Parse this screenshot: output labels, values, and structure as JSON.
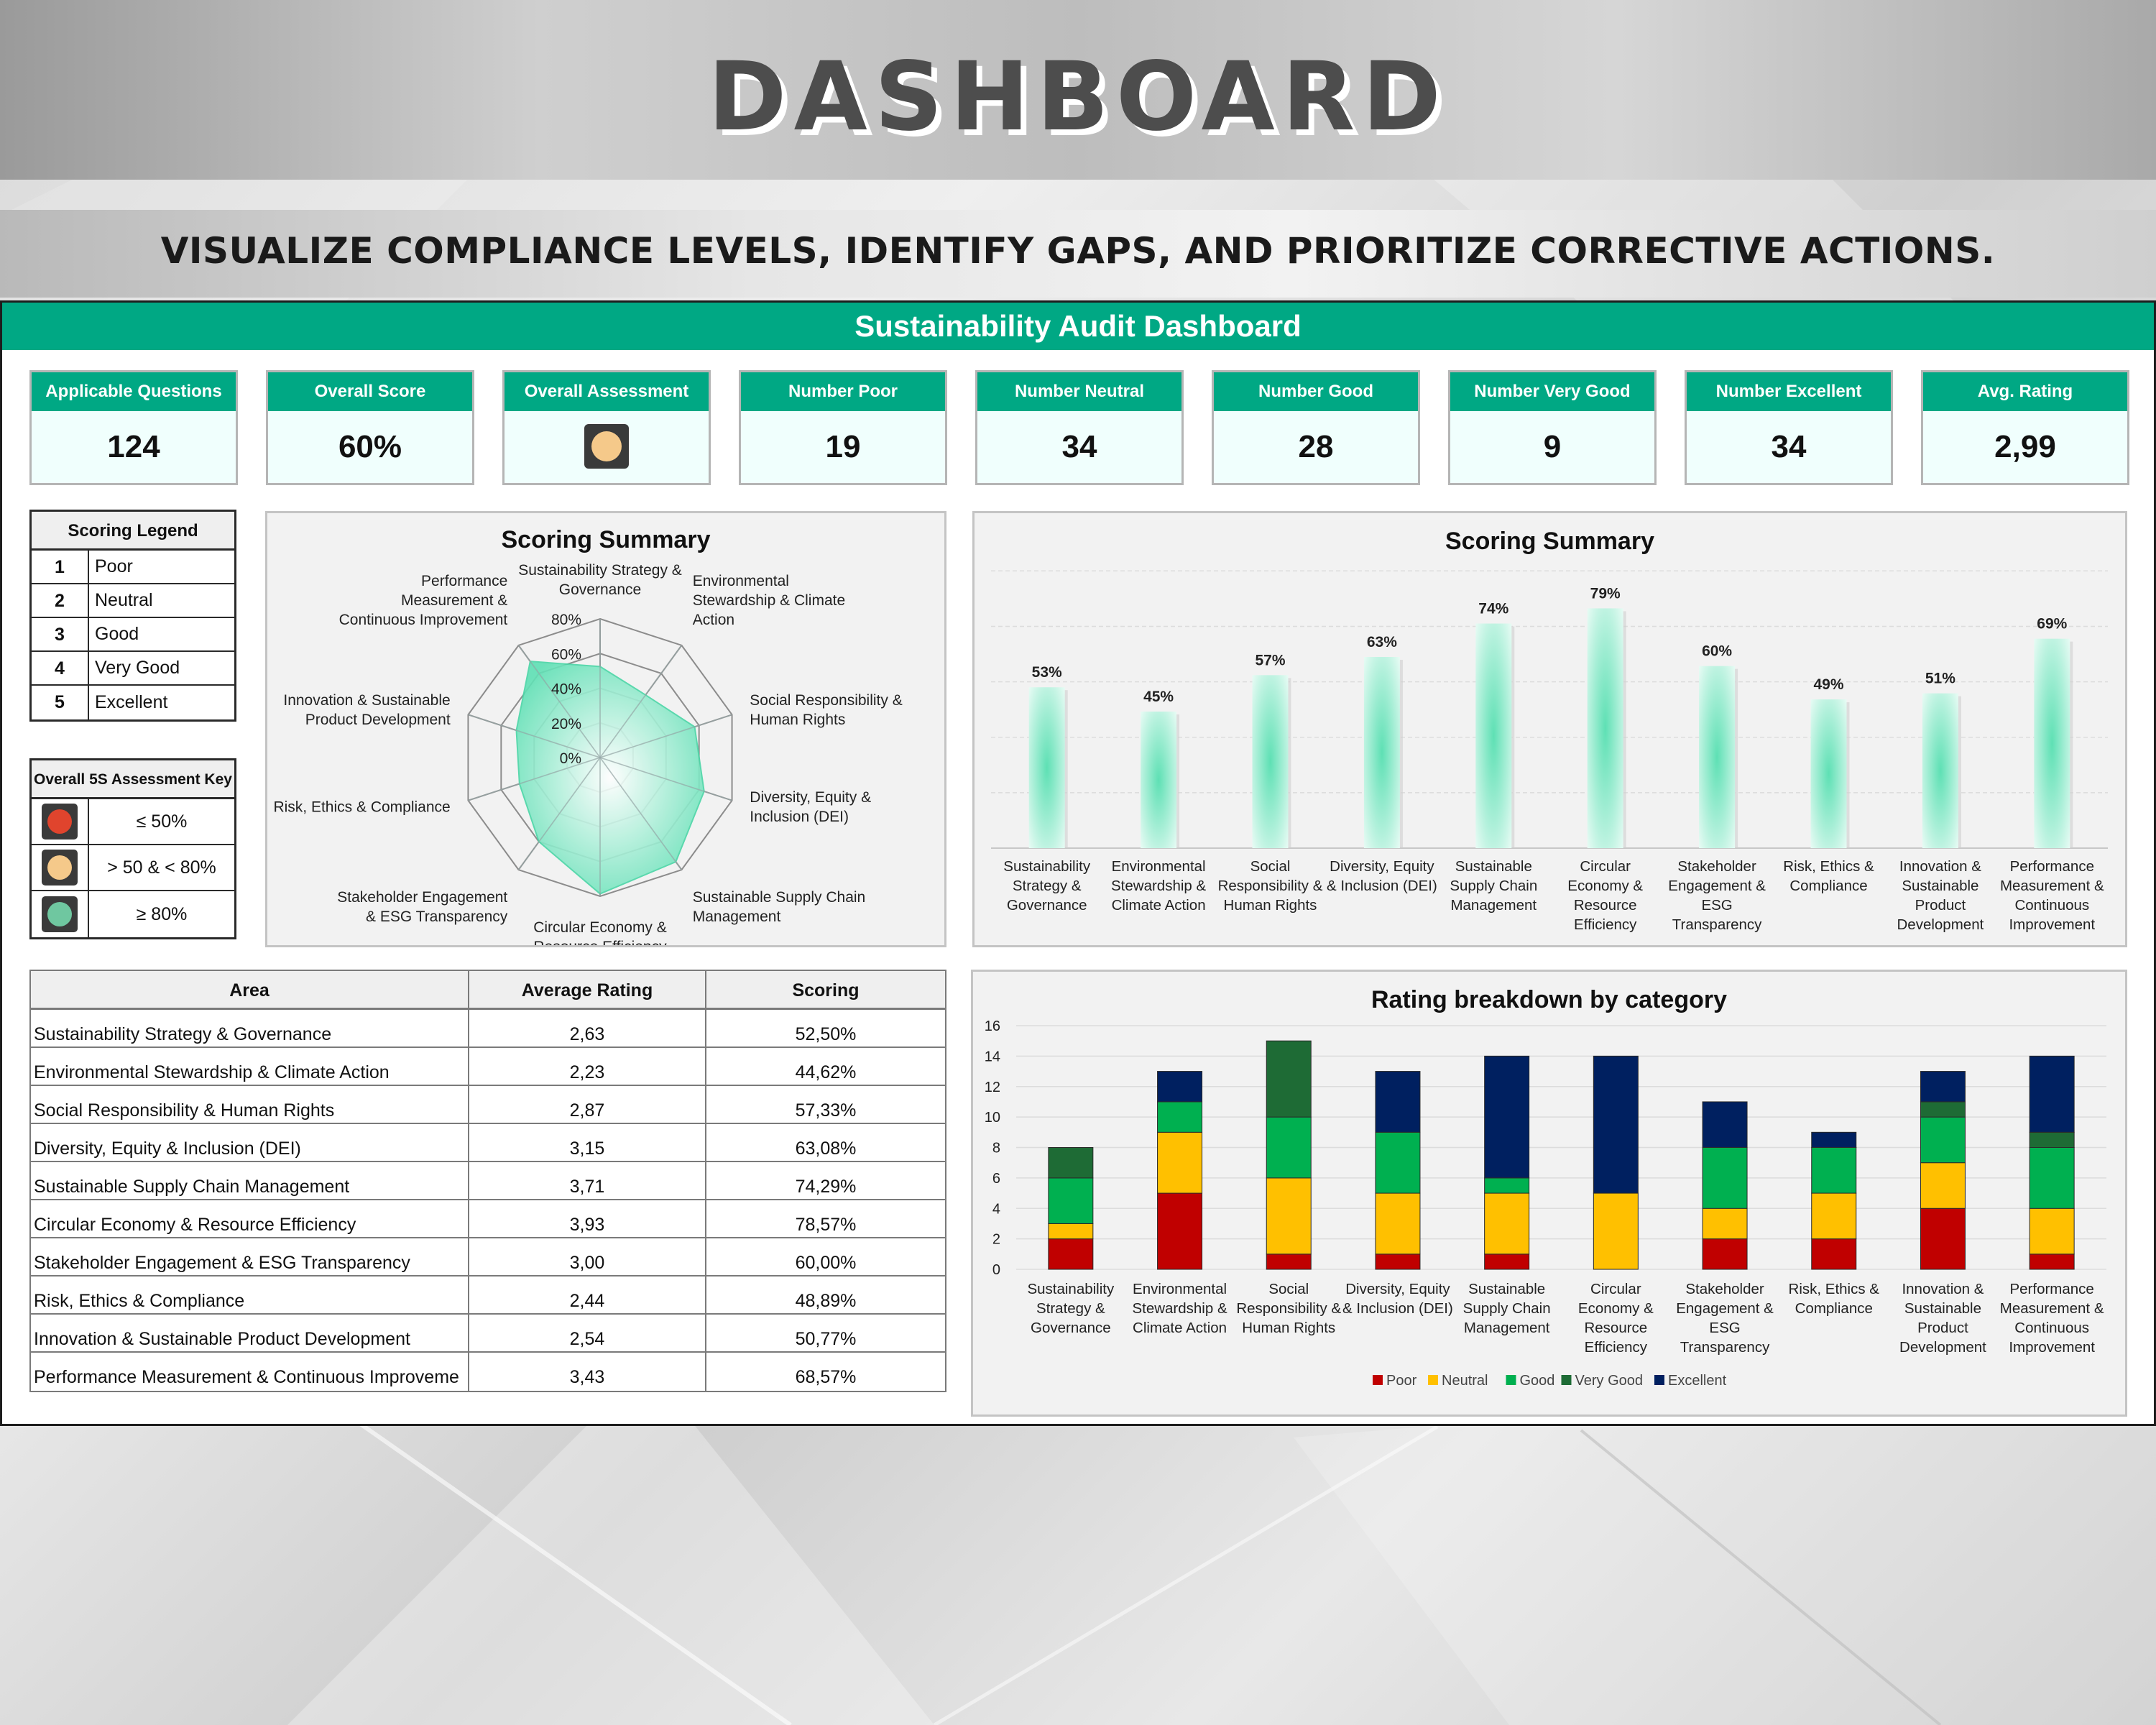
{
  "page": {
    "title": "DASHBOARD",
    "subtitle": "VISUALIZE COMPLIANCE LEVELS, IDENTIFY GAPS, AND PRIORITIZE CORRECTIVE ACTIONS.",
    "dashboard_title": "Sustainability Audit Dashboard"
  },
  "colors": {
    "accent": "#00a884",
    "poor": "#c00000",
    "neutral": "#ffc000",
    "good": "#00b050",
    "very_good": "#1e6b35",
    "excellent": "#002060",
    "status_red": "#e0442d",
    "status_amber": "#f5c98a",
    "status_green": "#6fc7a0"
  },
  "kpis": [
    {
      "label": "Applicable Questions",
      "value": "124"
    },
    {
      "label": "Overall Score",
      "value": "60%"
    },
    {
      "label": "Overall Assessment",
      "value": "",
      "icon": "amber-status-icon"
    },
    {
      "label": "Number Poor",
      "value": "19"
    },
    {
      "label": "Number Neutral",
      "value": "34"
    },
    {
      "label": "Number Good",
      "value": "28"
    },
    {
      "label": "Number Very Good",
      "value": "9"
    },
    {
      "label": "Number Excellent",
      "value": "34"
    },
    {
      "label": "Avg. Rating",
      "value": "2,99"
    }
  ],
  "scoring_legend": {
    "title": "Scoring Legend",
    "items": [
      {
        "num": "1",
        "label": "Poor"
      },
      {
        "num": "2",
        "label": "Neutral"
      },
      {
        "num": "3",
        "label": "Good"
      },
      {
        "num": "4",
        "label": "Very Good"
      },
      {
        "num": "5",
        "label": "Excellent"
      }
    ]
  },
  "assessment_key": {
    "title": "Overall 5S Assessment Key",
    "items": [
      {
        "icon": "red-status-icon",
        "label": "≤ 50%"
      },
      {
        "icon": "amber-status-icon",
        "label": "> 50 & < 80%"
      },
      {
        "icon": "green-status-icon",
        "label": "≥ 80%"
      }
    ]
  },
  "area_table": {
    "headers": [
      "Area",
      "Average Rating",
      "Scoring"
    ],
    "rows": [
      [
        "Sustainability Strategy & Governance",
        "2,63",
        "52,50%"
      ],
      [
        "Environmental Stewardship & Climate Action",
        "2,23",
        "44,62%"
      ],
      [
        "Social Responsibility & Human Rights",
        "2,87",
        "57,33%"
      ],
      [
        "Diversity, Equity & Inclusion (DEI)",
        "3,15",
        "63,08%"
      ],
      [
        "Sustainable Supply Chain Management",
        "3,71",
        "74,29%"
      ],
      [
        "Circular Economy & Resource Efficiency",
        "3,93",
        "78,57%"
      ],
      [
        "Stakeholder Engagement & ESG Transparency",
        "3,00",
        "60,00%"
      ],
      [
        "Risk, Ethics & Compliance",
        "2,44",
        "48,89%"
      ],
      [
        "Innovation & Sustainable Product Development",
        "2,54",
        "50,77%"
      ],
      [
        "Performance Measurement & Continuous Improveme",
        "3,43",
        "68,57%"
      ]
    ]
  },
  "chart_data": [
    {
      "type": "radar",
      "title": "Scoring Summary",
      "categories": [
        [
          "Sustainability Strategy &",
          "Governance"
        ],
        [
          "Environmental",
          "Stewardship & Climate",
          "Action"
        ],
        [
          "Social Responsibility &",
          "Human Rights"
        ],
        [
          "Diversity, Equity &",
          "Inclusion (DEI)"
        ],
        [
          "Sustainable Supply Chain",
          "Management"
        ],
        [
          "Circular Economy &",
          "Resource Efficiency"
        ],
        [
          "Stakeholder Engagement",
          "& ESG Transparency"
        ],
        [
          "Risk, Ethics & Compliance"
        ],
        [
          "Innovation & Sustainable",
          "Product Development"
        ],
        [
          "Performance",
          "Measurement &",
          "Continuous Improvement"
        ]
      ],
      "values": [
        52.5,
        44.62,
        57.33,
        63.08,
        74.29,
        78.57,
        60.0,
        48.89,
        50.77,
        68.57
      ],
      "ticks": [
        "0%",
        "20%",
        "40%",
        "60%",
        "80%"
      ],
      "rmax": 80
    },
    {
      "type": "bar",
      "title": "Scoring Summary",
      "categories": [
        [
          "Sustainability",
          "Strategy &",
          "Governance"
        ],
        [
          "Environmental",
          "Stewardship &",
          "Climate Action"
        ],
        [
          "Social",
          "Responsibility &",
          "Human Rights"
        ],
        [
          "Diversity, Equity",
          "& Inclusion (DEI)"
        ],
        [
          "Sustainable",
          "Supply Chain",
          "Management"
        ],
        [
          "Circular",
          "Economy &",
          "Resource",
          "Efficiency"
        ],
        [
          "Stakeholder",
          "Engagement &",
          "ESG",
          "Transparency"
        ],
        [
          "Risk, Ethics &",
          "Compliance"
        ],
        [
          "Innovation &",
          "Sustainable",
          "Product",
          "Development"
        ],
        [
          "Performance",
          "Measurement &",
          "Continuous",
          "Improvement"
        ]
      ],
      "values": [
        53,
        45,
        57,
        63,
        74,
        79,
        60,
        49,
        51,
        69
      ],
      "labels": [
        "53%",
        "45%",
        "57%",
        "63%",
        "74%",
        "79%",
        "60%",
        "49%",
        "51%",
        "69%"
      ],
      "ylim": [
        0,
        100
      ]
    },
    {
      "type": "bar",
      "stacked": true,
      "title": "Rating breakdown by category",
      "categories": [
        [
          "Sustainability",
          "Strategy &",
          "Governance"
        ],
        [
          "Environmental",
          "Stewardship &",
          "Climate Action"
        ],
        [
          "Social",
          "Responsibility &",
          "Human Rights"
        ],
        [
          "Diversity, Equity",
          "& Inclusion (DEI)"
        ],
        [
          "Sustainable",
          "Supply Chain",
          "Management"
        ],
        [
          "Circular",
          "Economy &",
          "Resource",
          "Efficiency"
        ],
        [
          "Stakeholder",
          "Engagement &",
          "ESG",
          "Transparency"
        ],
        [
          "Risk, Ethics &",
          "Compliance"
        ],
        [
          "Innovation &",
          "Sustainable",
          "Product",
          "Development"
        ],
        [
          "Performance",
          "Measurement &",
          "Continuous",
          "Improvement"
        ]
      ],
      "series": [
        {
          "name": "Poor",
          "color": "#c00000",
          "values": [
            2,
            5,
            1,
            1,
            1,
            0,
            2,
            2,
            4,
            1
          ]
        },
        {
          "name": "Neutral",
          "color": "#ffc000",
          "values": [
            1,
            4,
            5,
            4,
            4,
            5,
            2,
            3,
            3,
            3
          ]
        },
        {
          "name": "Good",
          "color": "#00b050",
          "values": [
            3,
            2,
            4,
            4,
            1,
            0,
            4,
            3,
            3,
            4
          ]
        },
        {
          "name": "Very Good",
          "color": "#1e6b35",
          "values": [
            2,
            0,
            5,
            0,
            0,
            0,
            0,
            0,
            1,
            1
          ]
        },
        {
          "name": "Excellent",
          "color": "#002060",
          "values": [
            0,
            2,
            0,
            4,
            8,
            9,
            3,
            1,
            2,
            5
          ]
        }
      ],
      "yticks": [
        "0",
        "2",
        "4",
        "6",
        "8",
        "10",
        "12",
        "14",
        "16"
      ],
      "ylim": [
        0,
        16
      ],
      "legend": "bottom"
    }
  ]
}
